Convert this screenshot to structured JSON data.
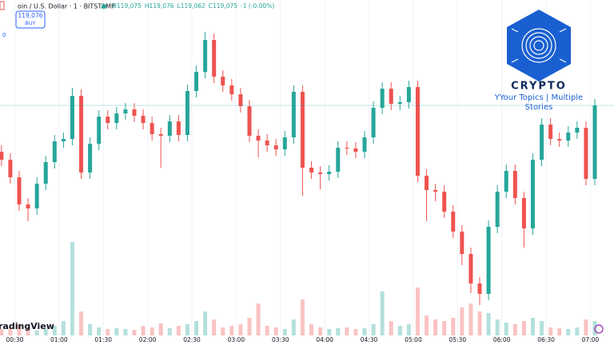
{
  "chart_data": {
    "type": "candlestick",
    "x": [
      21,
      27,
      33,
      39,
      45,
      51,
      57,
      63,
      69,
      75,
      81,
      87,
      93,
      99,
      105,
      111,
      117,
      123,
      129,
      135,
      141,
      147,
      153,
      159,
      165,
      171,
      177,
      183,
      189,
      195,
      201,
      207,
      213,
      219,
      225,
      231,
      237,
      243,
      249,
      255,
      261,
      267,
      273,
      279,
      285,
      291,
      297,
      303,
      309,
      315,
      321,
      327,
      333,
      339,
      345,
      351,
      357,
      363,
      369,
      375,
      381,
      387,
      393,
      399,
      405,
      411,
      417,
      423
    ],
    "open": [
      119017,
      119007,
      118985,
      118951,
      118946,
      118977,
      119004,
      119030,
      119033,
      119087,
      118991,
      119027,
      119061,
      119053,
      119065,
      119070,
      119062,
      119053,
      119039,
      119037,
      119055,
      119038,
      119093,
      119117,
      119157,
      119111,
      119100,
      119089,
      119074,
      119037,
      119031,
      119025,
      119020,
      119035,
      119092,
      118997,
      118991,
      118989,
      118992,
      119022,
      119021,
      119017,
      119035,
      119072,
      119096,
      119077,
      119079,
      119098,
      118987,
      118969,
      118967,
      118942,
      118917,
      118889,
      118852,
      118839,
      118923,
      118967,
      118993,
      118959,
      118921,
      119007,
      119051,
      119033,
      119031,
      119041,
      119047,
      118983
    ],
    "high": [
      119025,
      119015,
      118993,
      118959,
      118985,
      119012,
      119038,
      119041,
      119097,
      119095,
      119035,
      119069,
      119069,
      119073,
      119078,
      119078,
      119070,
      119061,
      119047,
      119063,
      119063,
      119101,
      119125,
      119167,
      119165,
      119119,
      119108,
      119097,
      119082,
      119045,
      119039,
      119033,
      119043,
      119100,
      119100,
      119005,
      118999,
      119000,
      119030,
      119030,
      119029,
      119043,
      119080,
      119104,
      119104,
      119087,
      119106,
      119106,
      118995,
      118977,
      118975,
      118950,
      118925,
      118897,
      118860,
      118931,
      118975,
      119001,
      119001,
      118967,
      119015,
      119059,
      119059,
      119041,
      119049,
      119055,
      119055,
      119083
    ],
    "low": [
      118999,
      118977,
      118943,
      118930,
      118938,
      118969,
      118996,
      119022,
      119025,
      118983,
      118983,
      119019,
      119045,
      119045,
      119057,
      119054,
      119045,
      119031,
      118997,
      119029,
      119030,
      119030,
      119085,
      119109,
      119103,
      119092,
      119081,
      119066,
      119029,
      119010,
      119017,
      119012,
      119012,
      119027,
      118962,
      118983,
      118970,
      118981,
      118984,
      119013,
      119009,
      119009,
      119027,
      119064,
      119069,
      119069,
      119071,
      118979,
      118930,
      118955,
      118934,
      118909,
      118875,
      118840,
      118825,
      118831,
      118915,
      118959,
      118951,
      118897,
      118913,
      118999,
      119025,
      119023,
      119023,
      119033,
      118975,
      118975
    ],
    "close": [
      119007,
      118985,
      118951,
      118946,
      118977,
      119004,
      119030,
      119033,
      119087,
      118991,
      119027,
      119061,
      119053,
      119065,
      119070,
      119062,
      119053,
      119039,
      119037,
      119055,
      119038,
      119093,
      119117,
      119157,
      119111,
      119100,
      119089,
      119074,
      119037,
      119031,
      119025,
      119020,
      119035,
      119092,
      118997,
      118991,
      118989,
      118992,
      119022,
      119021,
      119017,
      119035,
      119072,
      119096,
      119077,
      119079,
      119098,
      118987,
      118969,
      118967,
      118942,
      118917,
      118889,
      118852,
      118839,
      118923,
      118967,
      118993,
      118959,
      118921,
      119007,
      119051,
      119033,
      119031,
      119041,
      119047,
      118983,
      119075
    ],
    "volume": [
      8,
      10,
      14,
      10,
      6,
      8,
      12,
      18,
      117,
      30,
      14,
      10,
      8,
      9,
      8,
      7,
      12,
      10,
      15,
      9,
      12,
      14,
      18,
      30,
      20,
      10,
      12,
      14,
      22,
      40,
      12,
      10,
      8,
      20,
      45,
      14,
      10,
      8,
      9,
      10,
      8,
      9,
      14,
      55,
      18,
      12,
      14,
      60,
      25,
      20,
      18,
      22,
      35,
      40,
      30,
      28,
      20,
      16,
      14,
      18,
      22,
      18,
      10,
      9,
      8,
      10,
      20,
      18
    ],
    "up_color": "#26a69a",
    "down_color": "#ef5350",
    "xlim": [
      20,
      436
    ],
    "xticks": [
      {
        "value": 30,
        "label": "00:30"
      },
      {
        "value": 60,
        "label": "01:00"
      },
      {
        "value": 90,
        "label": "01:30"
      },
      {
        "value": 120,
        "label": "02:00"
      },
      {
        "value": 150,
        "label": "02:30"
      },
      {
        "value": 180,
        "label": "03:00"
      },
      {
        "value": 210,
        "label": "03:30"
      },
      {
        "value": 240,
        "label": "04:00"
      },
      {
        "value": 270,
        "label": "04:30"
      },
      {
        "value": 300,
        "label": "05:00"
      },
      {
        "value": 330,
        "label": "05:30"
      },
      {
        "value": 360,
        "label": "06:00"
      },
      {
        "value": 390,
        "label": "06:30"
      },
      {
        "value": 420,
        "label": "07:00"
      }
    ],
    "ylim": [
      118775,
      119207
    ],
    "y2lim": [
      0,
      400
    ],
    "grid": true
  },
  "header": {
    "symbol": "oin / U.S. Dollar · 1 · BITSTAMP",
    "ohlc": [
      "O119,075",
      "H119,076",
      "L119,062",
      "C119,075",
      "-1 (-0.00%)"
    ],
    "side_value": "0"
  },
  "buy_button": {
    "price": "119,076",
    "label": "BUY"
  },
  "watermark": "radingView",
  "logo": {
    "brand": "CRYPTO",
    "tagline": [
      "YYour Topics | Multiple",
      "Stories"
    ]
  }
}
